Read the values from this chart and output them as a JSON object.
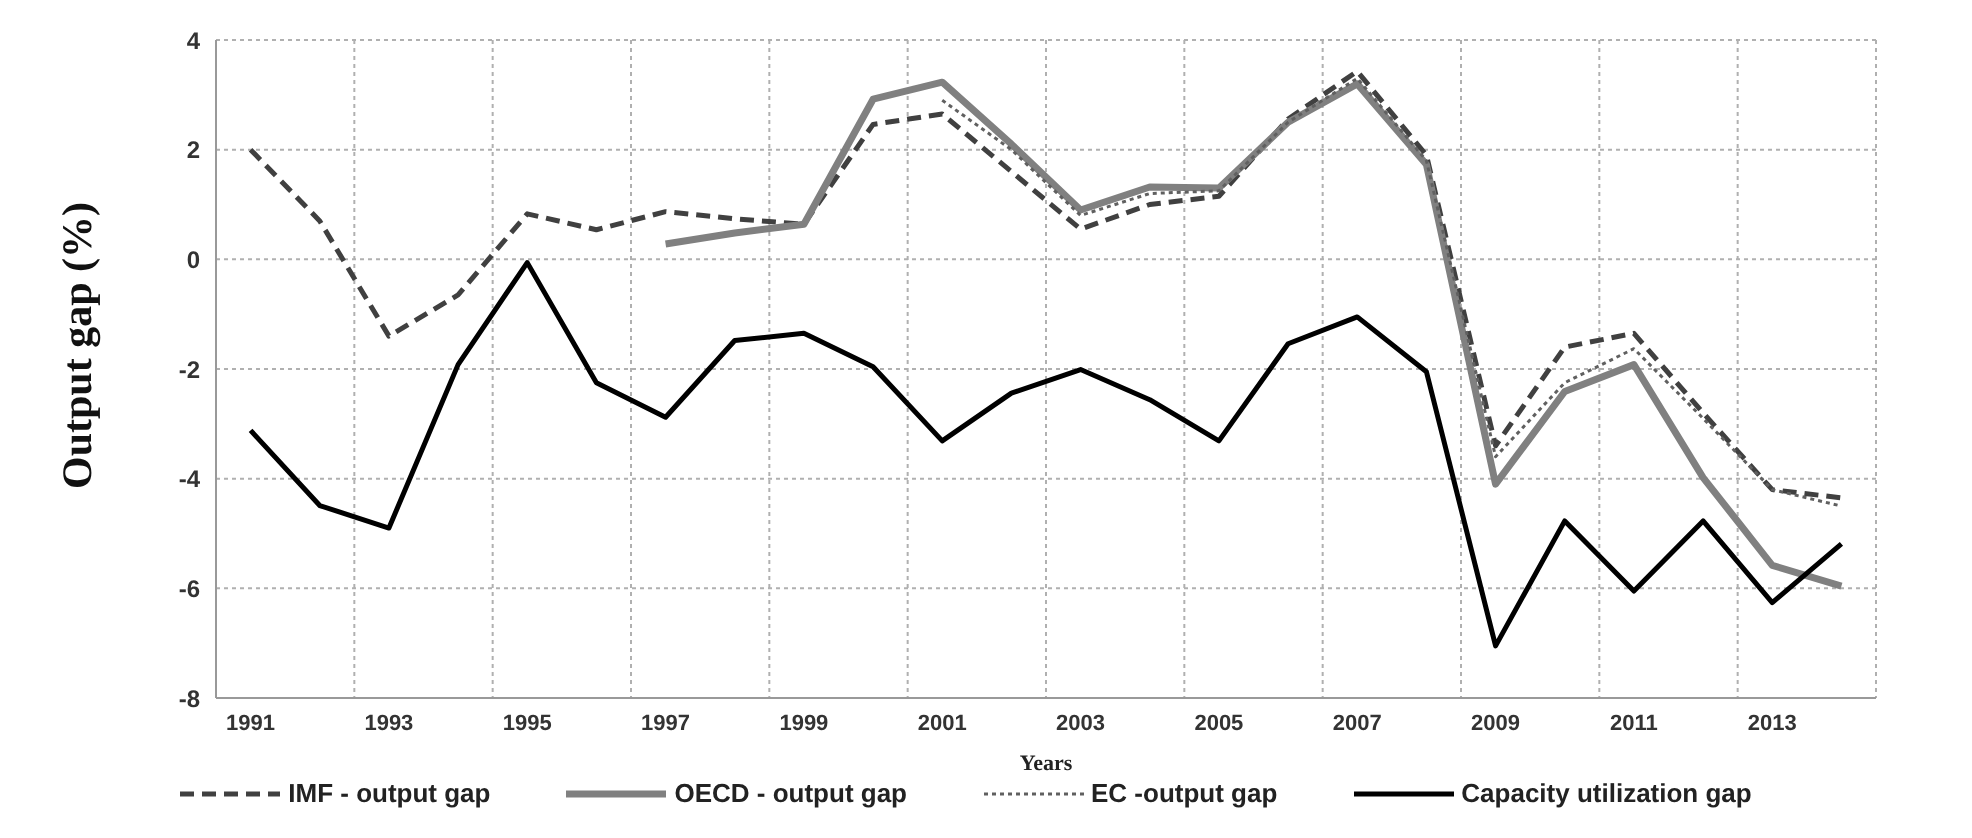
{
  "chart_data": {
    "type": "line",
    "xlabel": "Years",
    "ylabel": "Output gap (%)",
    "categories": [
      "1991",
      null,
      "1993",
      null,
      "1995",
      null,
      "1997",
      null,
      "1999",
      null,
      "2001",
      null,
      "2003",
      null,
      "2005",
      null,
      "2007",
      null,
      "2009",
      null,
      "2011",
      null,
      "2013",
      null
    ],
    "series": [
      {
        "name": "IMF - output gap",
        "color": "#404040",
        "line_style": "dashed",
        "values": [
          2.0,
          0.7,
          -1.4,
          -0.65,
          0.83,
          0.54,
          0.87,
          0.74,
          0.64,
          2.46,
          2.65,
          1.6,
          0.55,
          1.0,
          1.15,
          2.56,
          3.43,
          1.9,
          -3.4,
          -1.6,
          -1.35,
          -2.8,
          -4.2,
          -4.35
        ]
      },
      {
        "name": "OECD - output gap",
        "color": "#808080",
        "line_style": "solid",
        "values": [
          null,
          null,
          null,
          null,
          null,
          null,
          0.28,
          0.48,
          0.64,
          2.92,
          3.23,
          2.1,
          0.9,
          1.32,
          1.3,
          2.5,
          3.2,
          1.73,
          -4.1,
          -2.41,
          -1.92,
          -3.98,
          -5.58,
          -5.96
        ]
      },
      {
        "name": "EC -output gap",
        "color": "#606060",
        "line_style": "dotted",
        "values": [
          null,
          null,
          null,
          null,
          null,
          null,
          null,
          null,
          null,
          null,
          2.9,
          2.0,
          0.8,
          1.2,
          1.25,
          2.5,
          3.3,
          1.8,
          -3.6,
          -2.25,
          -1.63,
          -2.9,
          -4.2,
          -4.5
        ]
      },
      {
        "name": "Capacity utilization gap",
        "color": "#000000",
        "line_style": "solid",
        "values": [
          -3.12,
          -4.49,
          -4.9,
          -1.92,
          -0.06,
          -2.25,
          -2.88,
          -1.48,
          -1.35,
          -1.96,
          -3.31,
          -2.44,
          -2.01,
          -2.56,
          -3.31,
          -1.54,
          -1.05,
          -2.05,
          -7.05,
          -4.77,
          -6.05,
          -4.77,
          -6.26,
          -5.19
        ]
      }
    ],
    "ylim": [
      -8,
      4
    ],
    "yticks": [
      -8,
      -6,
      -4,
      -2,
      0,
      2,
      4
    ],
    "grid": true,
    "legend": "bottom",
    "marker": "none"
  }
}
